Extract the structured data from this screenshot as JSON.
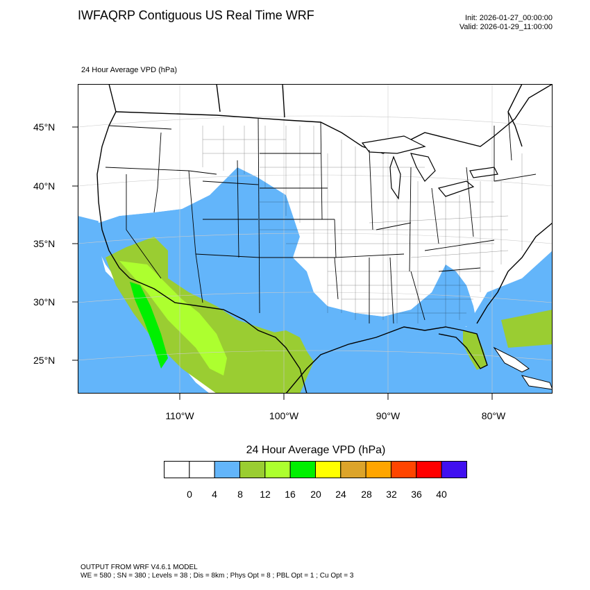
{
  "header": {
    "title": "IWFAQRP Contiguous US Real Time WRF",
    "init": "Init: 2026-01-27_00:00:00",
    "valid": "Valid: 2026-01-29_11:00:00",
    "subtitle": "24 Hour Average VPD   (hPa)"
  },
  "map": {
    "latitude_labels": [
      "45°N",
      "40°N",
      "35°N",
      "30°N",
      "25°N"
    ],
    "longitude_labels": [
      "110°W",
      "100°W",
      "90°W",
      "80°W"
    ],
    "colors": {
      "ocean_background": "#ffffff",
      "boundary": "#000000",
      "graticule": "#cccccc"
    }
  },
  "legend": {
    "title": "24 Hour Average VPD  (hPa)",
    "tick_labels": [
      "0",
      "4",
      "8",
      "12",
      "16",
      "20",
      "24",
      "28",
      "32",
      "36",
      "40"
    ],
    "colors": [
      "#ffffff",
      "#ffffff",
      "#63b5fa",
      "#9acd32",
      "#adff2f",
      "#00f000",
      "#ffff00",
      "#dca42a",
      "#ffa500",
      "#ff4500",
      "#ff0000",
      "#4010f0"
    ]
  },
  "footer": {
    "line1": "OUTPUT FROM WRF V4.6.1 MODEL",
    "line2": "WE = 580 ; SN = 380 ; Levels = 38 ; Dis = 8km ; Phys Opt = 8 ; PBL Opt = 1 ; Cu Opt = 3"
  }
}
